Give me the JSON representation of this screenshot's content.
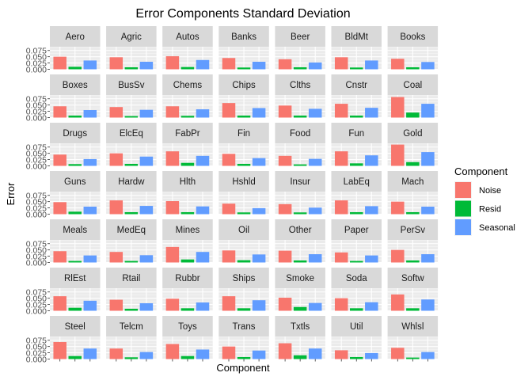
{
  "chart_data": {
    "type": "bar",
    "title": "Error Components Standard Deviation",
    "xlabel": "Component",
    "ylabel": "Error",
    "ylim": [
      0,
      0.09
    ],
    "y_ticks": [
      0.0,
      0.025,
      0.05,
      0.075
    ],
    "y_tick_labels": [
      "0.000",
      "0.025",
      "0.050",
      "0.075"
    ],
    "grid": true,
    "legend": {
      "title": "Component",
      "position": "right",
      "entries": [
        "Noise",
        "Resid",
        "Seasonal"
      ]
    },
    "colors": {
      "Noise": "#F8766D",
      "Resid": "#00BA38",
      "Seasonal": "#619CFF"
    },
    "facets": [
      {
        "label": "Aero",
        "values": [
          0.05,
          0.01,
          0.035
        ]
      },
      {
        "label": "Agric",
        "values": [
          0.048,
          0.008,
          0.03
        ]
      },
      {
        "label": "Autos",
        "values": [
          0.052,
          0.009,
          0.037
        ]
      },
      {
        "label": "Banks",
        "values": [
          0.045,
          0.007,
          0.03
        ]
      },
      {
        "label": "Beer",
        "values": [
          0.04,
          0.008,
          0.027
        ]
      },
      {
        "label": "BldMt",
        "values": [
          0.048,
          0.007,
          0.035
        ]
      },
      {
        "label": "Books",
        "values": [
          0.042,
          0.008,
          0.029
        ]
      },
      {
        "label": "Boxes",
        "values": [
          0.045,
          0.008,
          0.03
        ]
      },
      {
        "label": "BusSv",
        "values": [
          0.042,
          0.006,
          0.031
        ]
      },
      {
        "label": "Chems",
        "values": [
          0.045,
          0.007,
          0.033
        ]
      },
      {
        "label": "Chips",
        "values": [
          0.058,
          0.008,
          0.038
        ]
      },
      {
        "label": "Clths",
        "values": [
          0.048,
          0.008,
          0.035
        ]
      },
      {
        "label": "Cnstr",
        "values": [
          0.055,
          0.008,
          0.039
        ]
      },
      {
        "label": "Coal",
        "values": [
          0.082,
          0.02,
          0.055
        ]
      },
      {
        "label": "Drugs",
        "values": [
          0.045,
          0.007,
          0.027
        ]
      },
      {
        "label": "ElcEq",
        "values": [
          0.05,
          0.008,
          0.037
        ]
      },
      {
        "label": "FabPr",
        "values": [
          0.058,
          0.012,
          0.04
        ]
      },
      {
        "label": "Fin",
        "values": [
          0.048,
          0.008,
          0.031
        ]
      },
      {
        "label": "Food",
        "values": [
          0.04,
          0.006,
          0.028
        ]
      },
      {
        "label": "Fun",
        "values": [
          0.058,
          0.01,
          0.042
        ]
      },
      {
        "label": "Gold",
        "values": [
          0.085,
          0.015,
          0.055
        ]
      },
      {
        "label": "Guns",
        "values": [
          0.048,
          0.01,
          0.03
        ]
      },
      {
        "label": "Hardw",
        "values": [
          0.055,
          0.008,
          0.033
        ]
      },
      {
        "label": "Hlth",
        "values": [
          0.052,
          0.008,
          0.031
        ]
      },
      {
        "label": "Hshld",
        "values": [
          0.042,
          0.007,
          0.024
        ]
      },
      {
        "label": "Insur",
        "values": [
          0.04,
          0.007,
          0.026
        ]
      },
      {
        "label": "LabEq",
        "values": [
          0.055,
          0.008,
          0.032
        ]
      },
      {
        "label": "Mach",
        "values": [
          0.05,
          0.008,
          0.03
        ]
      },
      {
        "label": "Meals",
        "values": [
          0.045,
          0.006,
          0.028
        ]
      },
      {
        "label": "MedEq",
        "values": [
          0.042,
          0.006,
          0.029
        ]
      },
      {
        "label": "Mines",
        "values": [
          0.062,
          0.012,
          0.042
        ]
      },
      {
        "label": "Oil",
        "values": [
          0.048,
          0.009,
          0.032
        ]
      },
      {
        "label": "Other",
        "values": [
          0.047,
          0.008,
          0.033
        ]
      },
      {
        "label": "Paper",
        "values": [
          0.04,
          0.006,
          0.028
        ]
      },
      {
        "label": "PerSv",
        "values": [
          0.05,
          0.008,
          0.033
        ]
      },
      {
        "label": "RlEst",
        "values": [
          0.058,
          0.012,
          0.04
        ]
      },
      {
        "label": "Rtail",
        "values": [
          0.044,
          0.008,
          0.03
        ]
      },
      {
        "label": "Rubbr",
        "values": [
          0.048,
          0.01,
          0.033
        ]
      },
      {
        "label": "Ships",
        "values": [
          0.058,
          0.01,
          0.042
        ]
      },
      {
        "label": "Smoke",
        "values": [
          0.052,
          0.015,
          0.031
        ]
      },
      {
        "label": "Soda",
        "values": [
          0.05,
          0.01,
          0.034
        ]
      },
      {
        "label": "Softw",
        "values": [
          0.065,
          0.01,
          0.045
        ]
      },
      {
        "label": "Steel",
        "values": [
          0.068,
          0.012,
          0.042
        ]
      },
      {
        "label": "Telcm",
        "values": [
          0.042,
          0.007,
          0.028
        ]
      },
      {
        "label": "Toys",
        "values": [
          0.06,
          0.012,
          0.038
        ]
      },
      {
        "label": "Trans",
        "values": [
          0.05,
          0.008,
          0.034
        ]
      },
      {
        "label": "Txtls",
        "values": [
          0.063,
          0.015,
          0.042
        ]
      },
      {
        "label": "Util",
        "values": [
          0.035,
          0.008,
          0.024
        ]
      },
      {
        "label": "Whlsl",
        "values": [
          0.045,
          0.006,
          0.028
        ]
      }
    ]
  }
}
